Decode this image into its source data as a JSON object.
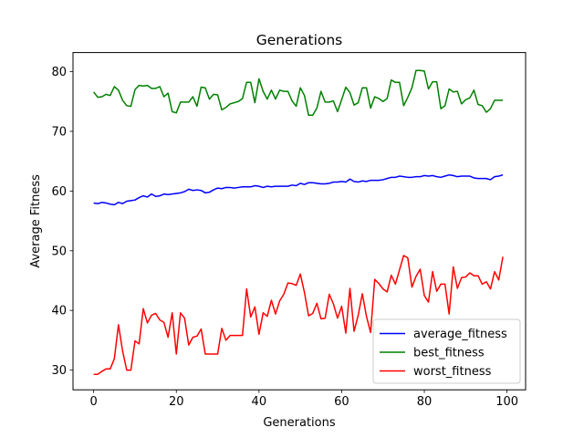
{
  "chart_data": {
    "type": "line",
    "title": "Generations",
    "xlabel": "Generations",
    "ylabel": "Average Fitness",
    "xlim": [
      -5,
      104.5
    ],
    "ylim": [
      26.7,
      83.2
    ],
    "xticks": [
      0,
      20,
      40,
      60,
      80,
      100
    ],
    "yticks": [
      30,
      40,
      50,
      60,
      70,
      80
    ],
    "grid": false,
    "legend_position": "lower right",
    "series": [
      {
        "name": "average_fitness",
        "color": "#0000ff",
        "values": [
          58.0,
          57.9,
          58.1,
          58.0,
          57.8,
          57.7,
          58.1,
          57.9,
          58.3,
          58.4,
          58.5,
          58.9,
          59.2,
          59.0,
          59.5,
          59.1,
          59.2,
          59.5,
          59.4,
          59.5,
          59.6,
          59.7,
          59.9,
          60.3,
          60.1,
          60.2,
          60.1,
          59.7,
          59.8,
          60.2,
          60.5,
          60.4,
          60.6,
          60.6,
          60.5,
          60.6,
          60.7,
          60.7,
          60.7,
          60.9,
          60.8,
          60.6,
          60.8,
          60.7,
          60.8,
          60.8,
          60.8,
          60.8,
          61.0,
          60.9,
          61.3,
          61.1,
          61.4,
          61.4,
          61.3,
          61.2,
          61.2,
          61.3,
          61.5,
          61.5,
          61.6,
          61.5,
          62.0,
          61.6,
          61.5,
          61.7,
          61.6,
          61.8,
          61.8,
          61.8,
          61.9,
          62.1,
          62.3,
          62.3,
          62.5,
          62.4,
          62.3,
          62.3,
          62.4,
          62.4,
          62.6,
          62.5,
          62.6,
          62.4,
          62.3,
          62.5,
          62.7,
          62.6,
          62.4,
          62.5,
          62.5,
          62.5,
          62.2,
          62.1,
          62.1,
          62.1,
          61.9,
          62.4,
          62.5,
          62.7
        ]
      },
      {
        "name": "best_fitness",
        "color": "#008000",
        "values": [
          76.6,
          75.7,
          75.8,
          76.2,
          76.0,
          77.5,
          76.9,
          75.2,
          74.3,
          74.2,
          77.0,
          77.7,
          77.6,
          77.7,
          77.2,
          77.2,
          77.5,
          75.8,
          76.4,
          73.3,
          73.1,
          74.9,
          74.9,
          74.9,
          75.8,
          74.2,
          77.4,
          77.3,
          75.4,
          76.2,
          76.1,
          73.6,
          74.0,
          74.6,
          74.8,
          75.0,
          75.5,
          78.2,
          78.2,
          74.8,
          78.8,
          76.7,
          75.4,
          76.9,
          75.4,
          76.9,
          76.7,
          76.7,
          75.1,
          74.2,
          77.3,
          76.0,
          72.7,
          72.7,
          73.9,
          76.7,
          74.9,
          74.9,
          75.1,
          73.3,
          75.3,
          77.4,
          76.5,
          74.4,
          74.8,
          77.3,
          77.3,
          73.9,
          75.8,
          75.5,
          75.0,
          75.5,
          78.6,
          78.2,
          78.2,
          74.3,
          75.7,
          77.3,
          80.2,
          80.2,
          80.1,
          77.1,
          78.3,
          78.3,
          73.8,
          74.3,
          77.1,
          76.6,
          76.7,
          74.6,
          75.3,
          75.6,
          76.9,
          74.5,
          74.3,
          73.2,
          73.8,
          75.2,
          75.2,
          75.2
        ]
      },
      {
        "name": "worst_fitness",
        "color": "#ff0000",
        "values": [
          29.3,
          29.3,
          29.8,
          30.2,
          30.2,
          31.9,
          37.6,
          33.2,
          30.0,
          30.0,
          34.9,
          34.4,
          40.3,
          37.9,
          39.2,
          39.5,
          38.4,
          38.0,
          35.5,
          39.6,
          32.7,
          39.6,
          38.7,
          34.2,
          35.5,
          35.7,
          36.9,
          32.7,
          32.7,
          32.7,
          32.7,
          37.0,
          35.0,
          35.8,
          35.8,
          35.8,
          35.8,
          43.6,
          38.9,
          40.6,
          36.0,
          39.6,
          39.0,
          41.7,
          39.4,
          41.6,
          42.7,
          44.6,
          44.5,
          44.2,
          46.1,
          43.0,
          39.1,
          39.5,
          41.2,
          38.6,
          38.7,
          42.7,
          41.1,
          38.7,
          40.7,
          36.2,
          43.7,
          36.5,
          39.2,
          42.8,
          39.0,
          36.3,
          45.2,
          44.5,
          43.6,
          43.1,
          45.9,
          44.4,
          46.8,
          49.2,
          48.8,
          43.9,
          45.7,
          46.9,
          42.5,
          41.4,
          46.5,
          43.2,
          44.4,
          44.4,
          39.4,
          47.3,
          43.7,
          45.5,
          45.6,
          46.3,
          45.8,
          45.8,
          44.4,
          44.8,
          43.6,
          46.5,
          45.1,
          49.0
        ]
      }
    ]
  }
}
